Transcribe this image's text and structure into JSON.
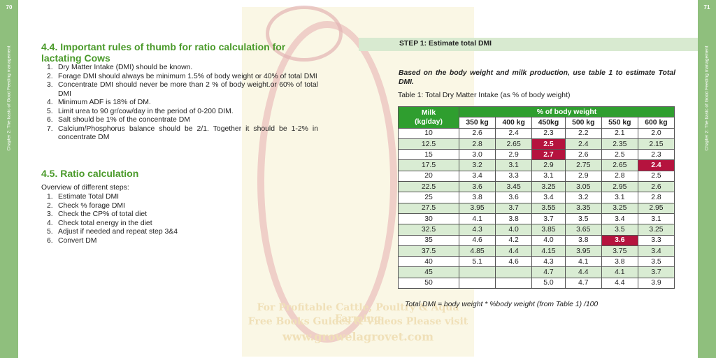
{
  "page_numbers": {
    "left": "70",
    "right": "71"
  },
  "sidebar": {
    "left_text": "Chapter 2: The basic of Good Feeding management",
    "right_text": "Chapter 2: The basic of Good Feeding management"
  },
  "watermark": {
    "line1": "For Profitable Cattle, Poultry & Aqua Farming",
    "line2": "Free Books Guides & Videos Please visit",
    "line3": "www.growelagrovet.com"
  },
  "section_4_4": {
    "heading": "4.4.  Important  rules of thumb for ratio calculation for lactating Cows",
    "rules": [
      {
        "num": "1.",
        "text": "Dry Matter Intake (DMI) should be known."
      },
      {
        "num": "2.",
        "text": "Forage DMI should always be minimum 1.5% of body weight or 40% of total DMI"
      },
      {
        "num": "3.",
        "text": "Concentrate DMI should never be more than 2 % of body weight.or 60% of total DMI"
      },
      {
        "num": "4.",
        "text": "Minimum ADF is 18% of DM."
      },
      {
        "num": "5.",
        "text": "Limit urea to 90 gr/cow/day in the period of 0-200 DIM."
      },
      {
        "num": "6.",
        "text": "Salt should be 1% of the concentrate DM"
      },
      {
        "num": "7.",
        "text": "Calcium/Phosphorus balance should be 2/1. Together it should be 1-2% in concentrate DM"
      }
    ]
  },
  "section_4_5": {
    "heading": "4.5. Ratio calculation",
    "overview": "Overview of different steps:",
    "steps": [
      {
        "num": "1.",
        "text": "Estimate Total DMI"
      },
      {
        "num": "2.",
        "text": "Check % forage DMI"
      },
      {
        "num": "3.",
        "text": "Check the CP% of total diet"
      },
      {
        "num": "4.",
        "text": "Check total energy in the diet"
      },
      {
        "num": "5.",
        "text": "Adjust if needed and repeat step 3&4"
      },
      {
        "num": "6.",
        "text": "Convert DM"
      }
    ]
  },
  "step1": {
    "title": "STEP 1: Estimate total DMI",
    "instruction": "Based on the body weight and milk production, use table 1 to estimate Total DMI.",
    "caption": "Table 1: Total Dry Matter Intake (as % of body weight)",
    "formula": "Total DMI = body weight * %body weight (from Table 1) /100"
  },
  "table": {
    "milk_header_line1": "Milk",
    "milk_header_line2": "(kg/day)",
    "group_header": "% of body weight",
    "weights": [
      "350 kg",
      "400 kg",
      "450kg",
      "500 kg",
      "550 kg",
      "600 kg"
    ],
    "highlight_color": "#b5133e",
    "header_color": "#2f9e2f",
    "rows": [
      {
        "milk": "10",
        "cells": [
          {
            "v": "2.6"
          },
          {
            "v": "2.4"
          },
          {
            "v": "2.3"
          },
          {
            "v": "2.2"
          },
          {
            "v": "2.1"
          },
          {
            "v": "2.0"
          }
        ]
      },
      {
        "milk": "12.5",
        "cells": [
          {
            "v": "2.8"
          },
          {
            "v": "2.65"
          },
          {
            "v": "2.5",
            "hl": true
          },
          {
            "v": "2.4"
          },
          {
            "v": "2.35"
          },
          {
            "v": "2.15"
          }
        ]
      },
      {
        "milk": "15",
        "cells": [
          {
            "v": "3.0"
          },
          {
            "v": "2.9"
          },
          {
            "v": "2.7",
            "hl": true
          },
          {
            "v": "2.6"
          },
          {
            "v": "2.5"
          },
          {
            "v": "2.3"
          }
        ]
      },
      {
        "milk": "17.5",
        "cells": [
          {
            "v": "3.2"
          },
          {
            "v": "3.1"
          },
          {
            "v": "2.9"
          },
          {
            "v": "2.75"
          },
          {
            "v": "2.65"
          },
          {
            "v": "2.4",
            "hl": true
          }
        ]
      },
      {
        "milk": "20",
        "cells": [
          {
            "v": "3.4"
          },
          {
            "v": "3.3"
          },
          {
            "v": "3.1"
          },
          {
            "v": "2.9"
          },
          {
            "v": "2.8"
          },
          {
            "v": "2.5"
          }
        ]
      },
      {
        "milk": "22.5",
        "cells": [
          {
            "v": "3.6"
          },
          {
            "v": "3.45"
          },
          {
            "v": "3.25"
          },
          {
            "v": "3.05"
          },
          {
            "v": "2.95"
          },
          {
            "v": "2.6"
          }
        ]
      },
      {
        "milk": "25",
        "cells": [
          {
            "v": "3.8"
          },
          {
            "v": "3.6"
          },
          {
            "v": "3.4"
          },
          {
            "v": "3.2"
          },
          {
            "v": "3.1"
          },
          {
            "v": "2.8"
          }
        ]
      },
      {
        "milk": "27.5",
        "cells": [
          {
            "v": "3.95"
          },
          {
            "v": "3.7"
          },
          {
            "v": "3.55"
          },
          {
            "v": "3.35"
          },
          {
            "v": "3.25"
          },
          {
            "v": "2.95"
          }
        ]
      },
      {
        "milk": "30",
        "cells": [
          {
            "v": "4.1"
          },
          {
            "v": "3.8"
          },
          {
            "v": "3.7"
          },
          {
            "v": "3.5"
          },
          {
            "v": "3.4"
          },
          {
            "v": "3.1"
          }
        ]
      },
      {
        "milk": "32.5",
        "cells": [
          {
            "v": "4.3"
          },
          {
            "v": "4.0"
          },
          {
            "v": "3.85"
          },
          {
            "v": "3.65"
          },
          {
            "v": "3.5"
          },
          {
            "v": "3.25"
          }
        ]
      },
      {
        "milk": "35",
        "cells": [
          {
            "v": "4.6"
          },
          {
            "v": "4.2"
          },
          {
            "v": "4.0"
          },
          {
            "v": "3.8"
          },
          {
            "v": "3.6",
            "hl": true
          },
          {
            "v": "3.3"
          }
        ]
      },
      {
        "milk": "37.5",
        "cells": [
          {
            "v": "4.85"
          },
          {
            "v": "4.4"
          },
          {
            "v": "4.15"
          },
          {
            "v": "3.95"
          },
          {
            "v": "3.75"
          },
          {
            "v": "3.4"
          }
        ]
      },
      {
        "milk": "40",
        "cells": [
          {
            "v": "5.1"
          },
          {
            "v": "4.6"
          },
          {
            "v": "4.3"
          },
          {
            "v": "4.1"
          },
          {
            "v": "3.8"
          },
          {
            "v": "3.5"
          }
        ]
      },
      {
        "milk": "45",
        "cells": [
          {
            "v": ""
          },
          {
            "v": ""
          },
          {
            "v": "4.7"
          },
          {
            "v": "4.4"
          },
          {
            "v": "4.1"
          },
          {
            "v": "3.7"
          }
        ]
      },
      {
        "milk": "50",
        "cells": [
          {
            "v": ""
          },
          {
            "v": ""
          },
          {
            "v": "5.0"
          },
          {
            "v": "4.7"
          },
          {
            "v": "4.4"
          },
          {
            "v": "3.9"
          }
        ]
      }
    ]
  }
}
